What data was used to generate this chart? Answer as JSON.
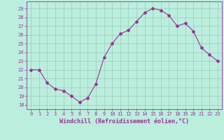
{
  "x": [
    0,
    1,
    2,
    3,
    4,
    5,
    6,
    7,
    8,
    9,
    10,
    11,
    12,
    13,
    14,
    15,
    16,
    17,
    18,
    19,
    20,
    21,
    22,
    23
  ],
  "y": [
    22,
    22,
    20.5,
    19.8,
    19.6,
    19.0,
    18.3,
    18.8,
    20.4,
    23.4,
    25.0,
    26.1,
    26.5,
    27.5,
    28.5,
    29.0,
    28.8,
    28.2,
    27.0,
    27.3,
    26.4,
    24.5,
    23.7,
    23.0
  ],
  "line_color": "#993399",
  "marker": "D",
  "marker_size": 2,
  "bg_color": "#bbeedd",
  "grid_color": "#99ccbb",
  "xlabel": "Windchill (Refroidissement éolien,°C)",
  "ylim": [
    17.5,
    29.8
  ],
  "xlim": [
    -0.5,
    23.5
  ],
  "yticks": [
    18,
    19,
    20,
    21,
    22,
    23,
    24,
    25,
    26,
    27,
    28,
    29
  ],
  "xticks": [
    0,
    1,
    2,
    3,
    4,
    5,
    6,
    7,
    8,
    9,
    10,
    11,
    12,
    13,
    14,
    15,
    16,
    17,
    18,
    19,
    20,
    21,
    22,
    23
  ],
  "tick_color": "#993399",
  "label_color": "#993399",
  "tick_fontsize": 5.0,
  "xlabel_fontsize": 6.0
}
